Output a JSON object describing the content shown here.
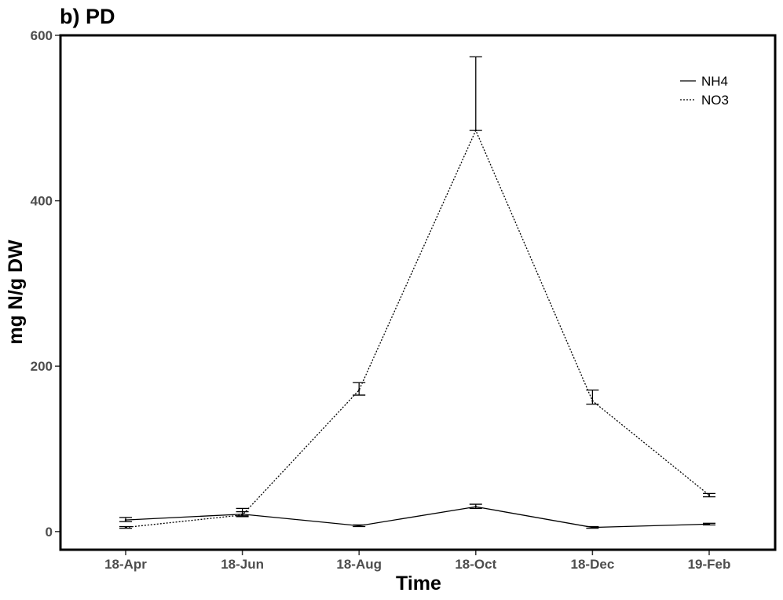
{
  "chart_data": {
    "type": "line",
    "title": "b) PD",
    "xlabel": "Time",
    "ylabel": "mg N/g DW",
    "categories": [
      "18-Apr",
      "18-Jun",
      "18-Aug",
      "18-Oct",
      "18-Dec",
      "19-Feb"
    ],
    "ylim": [
      -22,
      600
    ],
    "yticks": [
      0,
      200,
      400,
      600
    ],
    "grid": false,
    "legend_position": "top-right",
    "series": [
      {
        "name": "NH4",
        "line_style": "solid",
        "values": [
          14,
          21,
          7,
          30,
          5,
          9
        ],
        "error_low": [
          12,
          19,
          6,
          28,
          4,
          8
        ],
        "error_high": [
          17,
          24,
          8,
          33,
          6,
          10
        ]
      },
      {
        "name": "NO3",
        "line_style": "dotted",
        "values": [
          5,
          20,
          171,
          485,
          158,
          44
        ],
        "error_low": [
          4,
          18,
          165,
          485,
          154,
          42
        ],
        "error_high": [
          6,
          28,
          180,
          574,
          171,
          46
        ]
      }
    ]
  },
  "colors": {
    "line": "#000000",
    "tick_label": "#4d4d4d",
    "background": "#ffffff"
  }
}
